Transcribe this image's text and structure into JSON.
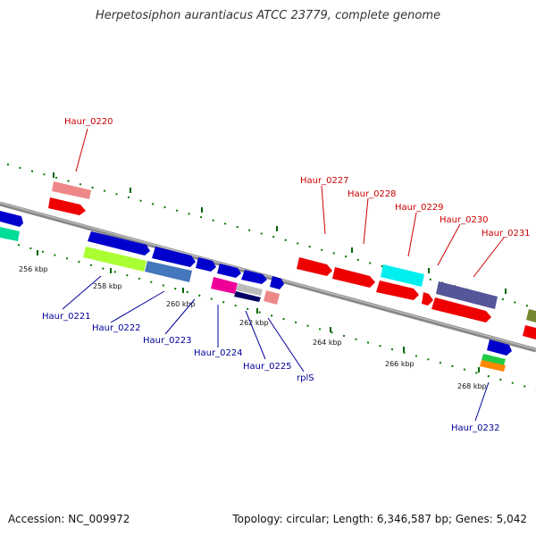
{
  "title": "Herpetosiphon aurantiacus ATCC 23779, complete genome",
  "footer": {
    "accession": "Accession: NC_009972",
    "stats": "Topology: circular; Length: 6,346,587 bp; Genes: 5,042"
  },
  "scale_labels": [
    "256 kbp",
    "258 kbp",
    "260 kbp",
    "262 kbp",
    "264 kbp",
    "266 kbp",
    "268 kbp"
  ],
  "genes": [
    {
      "name": "Haur_0220",
      "color": "#cc0000"
    },
    {
      "name": "Haur_0221",
      "color": "#000099"
    },
    {
      "name": "Haur_0222",
      "color": "#000099"
    },
    {
      "name": "Haur_0223",
      "color": "#000099"
    },
    {
      "name": "Haur_0224",
      "color": "#000099"
    },
    {
      "name": "Haur_0225",
      "color": "#000099"
    },
    {
      "name": "rplS",
      "color": "#000099"
    },
    {
      "name": "Haur_0227",
      "color": "#cc0000"
    },
    {
      "name": "Haur_0228",
      "color": "#cc0000"
    },
    {
      "name": "Haur_0229",
      "color": "#cc0000"
    },
    {
      "name": "Haur_0230",
      "color": "#cc0000"
    },
    {
      "name": "Haur_0231",
      "color": "#cc0000"
    },
    {
      "name": "Haur_0232",
      "color": "#000099"
    }
  ]
}
